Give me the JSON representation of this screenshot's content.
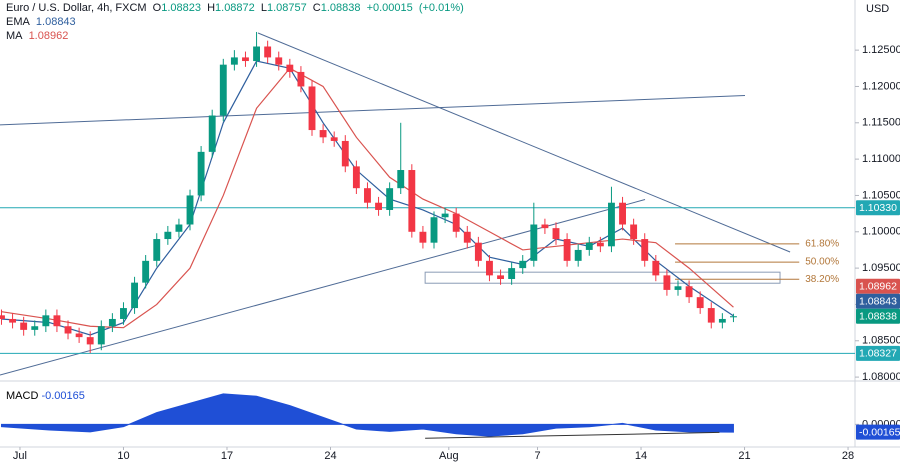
{
  "chart_data": {
    "type": "candlestick",
    "symbol": "Euro / U.S. Dollar, 4h, FXCM",
    "currency": "USD",
    "ohlc_keys": [
      "O",
      "H",
      "L",
      "C"
    ],
    "change": {
      "value": 0.00015,
      "label": "+0.00015"
    },
    "change_pct": {
      "value": 0.01,
      "label": "(+0.01%)"
    },
    "up_color": "#089981",
    "down_color": "#f23645",
    "x": [
      -1.25,
      -0.5,
      0.25,
      1.0,
      1.75,
      2.5,
      3.25,
      4.0,
      4.75,
      5.5,
      6.25,
      7.0,
      7.75,
      8.5,
      9.25,
      10.0,
      10.75,
      11.5,
      12.25,
      13.0,
      13.75,
      14.5,
      15.25,
      16.0,
      16.75,
      17.5,
      18.25,
      19.0,
      19.75,
      20.5,
      21.25,
      22.0,
      22.75,
      23.5,
      24.25,
      25.0,
      25.75,
      26.5,
      27.25,
      28.0,
      28.75,
      29.5,
      30.25,
      31.0,
      31.75,
      32.5,
      33.25,
      34.0,
      34.75,
      35.5,
      36.25,
      37.0,
      37.75,
      38.5,
      39.25,
      40.0,
      40.75,
      41.5,
      42.25,
      43.0,
      43.75,
      44.5,
      45.25,
      46.0,
      46.75,
      47.5,
      48.25
    ],
    "open": [
      1.0885,
      1.088,
      1.0875,
      1.0865,
      1.087,
      1.0885,
      1.087,
      1.086,
      1.0855,
      1.0845,
      1.087,
      1.088,
      1.0895,
      1.093,
      1.096,
      1.099,
      1.1,
      1.101,
      1.105,
      1.111,
      1.116,
      1.123,
      1.124,
      1.1235,
      1.1255,
      1.124,
      1.123,
      1.122,
      1.12,
      1.114,
      1.113,
      1.1125,
      1.109,
      1.106,
      1.104,
      1.103,
      1.106,
      1.1085,
      1.1,
      1.0985,
      1.102,
      1.1025,
      1.1,
      1.0985,
      1.096,
      1.094,
      1.0935,
      1.095,
      1.096,
      1.101,
      1.1005,
      1.099,
      1.096,
      1.0975,
      1.0985,
      1.098,
      1.104,
      1.101,
      1.099,
      1.096,
      1.094,
      1.092,
      1.0925,
      1.091,
      1.0895,
      1.0875,
      1.08823
    ],
    "high": [
      1.0893,
      1.0888,
      1.0883,
      1.0878,
      1.0893,
      1.0893,
      1.0878,
      1.0868,
      1.0863,
      1.0878,
      1.0888,
      1.0903,
      1.0938,
      1.0968,
      1.0998,
      1.1008,
      1.1018,
      1.1058,
      1.1118,
      1.1168,
      1.1238,
      1.125,
      1.1248,
      1.1275,
      1.1263,
      1.1248,
      1.1238,
      1.1228,
      1.1208,
      1.1148,
      1.1138,
      1.1133,
      1.1098,
      1.1068,
      1.1048,
      1.1068,
      1.115,
      1.1093,
      1.1008,
      1.1028,
      1.1033,
      1.1033,
      1.1008,
      1.0993,
      1.0968,
      1.0948,
      1.0958,
      1.0968,
      1.104,
      1.1018,
      1.1013,
      1.0998,
      1.0983,
      1.0993,
      1.0993,
      1.1062,
      1.1048,
      1.1018,
      1.0998,
      1.0968,
      1.0948,
      1.0933,
      1.0933,
      1.0918,
      1.0903,
      1.0888,
      1.08872
    ],
    "low": [
      1.0872,
      1.0867,
      1.0857,
      1.0857,
      1.0862,
      1.0862,
      1.0852,
      1.0847,
      1.0833,
      1.0837,
      1.0862,
      1.0872,
      1.0887,
      1.0922,
      1.0952,
      1.0982,
      1.0992,
      1.1002,
      1.1042,
      1.1102,
      1.1152,
      1.1222,
      1.1227,
      1.1227,
      1.1232,
      1.1222,
      1.1212,
      1.1192,
      1.1132,
      1.1122,
      1.1117,
      1.1082,
      1.1052,
      1.1032,
      1.1022,
      1.1022,
      1.1052,
      1.0992,
      1.0977,
      1.0977,
      1.1012,
      1.0992,
      1.0977,
      1.0952,
      1.0932,
      1.0927,
      1.0927,
      1.0942,
      1.0952,
      1.0997,
      1.0982,
      1.0952,
      1.0952,
      1.0967,
      1.0972,
      1.0972,
      1.1002,
      1.0982,
      1.0952,
      1.0932,
      1.0912,
      1.0912,
      1.0902,
      1.0887,
      1.0867,
      1.0867,
      1.08757
    ],
    "close": [
      1.088,
      1.0875,
      1.0865,
      1.087,
      1.0885,
      1.087,
      1.086,
      1.0855,
      1.0845,
      1.087,
      1.088,
      1.0895,
      1.093,
      1.096,
      1.099,
      1.1,
      1.101,
      1.105,
      1.111,
      1.116,
      1.123,
      1.124,
      1.1235,
      1.1255,
      1.124,
      1.123,
      1.122,
      1.12,
      1.114,
      1.113,
      1.1125,
      1.109,
      1.106,
      1.104,
      1.103,
      1.106,
      1.1085,
      1.1,
      1.0985,
      1.102,
      1.1025,
      1.1,
      1.0985,
      1.096,
      1.094,
      1.0935,
      1.095,
      1.096,
      1.101,
      1.1005,
      1.099,
      1.096,
      1.0975,
      1.0985,
      1.098,
      1.104,
      1.101,
      1.099,
      1.096,
      1.094,
      1.092,
      1.0925,
      1.091,
      1.0895,
      1.0875,
      1.088,
      1.08838
    ],
    "series": [
      {
        "name": "EMA",
        "color": "#2f5f9e",
        "x": [
          -1.25,
          2,
          4.75,
          7,
          9.25,
          11.5,
          13.75,
          16,
          18.25,
          20.5,
          22.75,
          25,
          27.25,
          29.5,
          31.75,
          34,
          36.25,
          38.5,
          40.75,
          43,
          45.25,
          48.25
        ],
        "values": [
          1.088,
          1.0875,
          1.0858,
          1.0875,
          1.095,
          1.101,
          1.115,
          1.1235,
          1.1225,
          1.115,
          1.1085,
          1.1045,
          1.103,
          1.101,
          1.0965,
          1.0955,
          1.099,
          1.098,
          1.1005,
          1.096,
          1.0925,
          1.08843
        ]
      },
      {
        "name": "MA",
        "color": "#d9534f",
        "x": [
          -1.25,
          2,
          4.75,
          7,
          9.25,
          11.5,
          13.75,
          16,
          18.25,
          20.5,
          22.75,
          25,
          27.25,
          29.5,
          31.75,
          34,
          36.25,
          38.5,
          40.75,
          43,
          45.25,
          48.25
        ],
        "values": [
          1.089,
          1.088,
          1.087,
          1.0868,
          1.09,
          1.095,
          1.105,
          1.117,
          1.1225,
          1.12,
          1.113,
          1.1075,
          1.1045,
          1.1025,
          1.1,
          1.0975,
          1.098,
          1.0985,
          1.099,
          1.0985,
          1.095,
          1.08962
        ]
      }
    ],
    "hlines": [
      {
        "value": 1.1033,
        "label": "1.10330"
      },
      {
        "value": 1.08327,
        "label": "1.08327"
      }
    ],
    "hline_color": "#22a8b4",
    "trendlines": [
      {
        "x": [
          -1.35,
          49.03
        ],
        "y": [
          1.11472,
          1.11875
        ]
      },
      {
        "x": [
          16.1,
          52.08
        ],
        "y": [
          1.12736,
          1.09722
        ]
      },
      {
        "x": [
          -1.35,
          42.27
        ],
        "y": [
          1.08028,
          1.10444
        ]
      }
    ],
    "trendline_color": "#4f6b96",
    "fib": {
      "x": [
        44.3,
        52.7
      ],
      "color": "#b2773a",
      "levels": [
        {
          "value": 1.09833,
          "label": "61.80%"
        },
        {
          "value": 1.09583,
          "label": "50.00%"
        },
        {
          "value": 1.09347,
          "label": "38.20%"
        }
      ]
    },
    "box": {
      "x": [
        27.4,
        51.4
      ],
      "y": [
        1.09292,
        1.09444
      ],
      "color": "#8a9bb5"
    },
    "xlim": [
      -1.35,
      56.47
    ],
    "xticks": [
      {
        "value": 0,
        "label": "Jul"
      },
      {
        "value": 7,
        "label": "10"
      },
      {
        "value": 14,
        "label": "17"
      },
      {
        "value": 21,
        "label": "24"
      },
      {
        "value": 29,
        "label": "Aug"
      },
      {
        "value": 35,
        "label": "7"
      },
      {
        "value": 42,
        "label": "14"
      },
      {
        "value": 49,
        "label": "21"
      },
      {
        "value": 56,
        "label": "28"
      }
    ],
    "ylim": [
      1.0796,
      1.1319
    ],
    "yticks": [
      {
        "value": 1.08,
        "label": "1.08000"
      },
      {
        "value": 1.085,
        "label": "1.08500"
      },
      {
        "value": 1.09,
        "label": "1.09000"
      },
      {
        "value": 1.095,
        "label": "1.09500"
      },
      {
        "value": 1.1,
        "label": "1.10000"
      },
      {
        "value": 1.105,
        "label": "1.10500"
      },
      {
        "value": 1.11,
        "label": "1.11000"
      },
      {
        "value": 1.115,
        "label": "1.11500"
      },
      {
        "value": 1.12,
        "label": "1.12000"
      },
      {
        "value": 1.125,
        "label": "1.12500"
      }
    ],
    "grid": false,
    "macd": {
      "name": "MACD",
      "color": "#1f4fd6",
      "x": [
        -1.25,
        2,
        4.75,
        7,
        9.25,
        11.5,
        13.75,
        16,
        18.25,
        20.5,
        22.75,
        25,
        27.25,
        29.5,
        31.75,
        34,
        36.25,
        38.5,
        40.75,
        43,
        45.25,
        48.25
      ],
      "values": [
        -0.0005,
        -0.0012,
        -0.0016,
        -0.0005,
        0.0025,
        0.0045,
        0.0065,
        0.006,
        0.004,
        0.0015,
        -0.001,
        -0.0015,
        -0.001,
        -0.002,
        -0.0025,
        -0.002,
        -0.0008,
        -0.0005,
        0.0002,
        -0.0012,
        -0.0016,
        -0.00165
      ],
      "ylim": [
        -0.0044,
        0.0086
      ],
      "yticks": [
        {
          "value": 0,
          "label": "0.00000"
        }
      ],
      "trendline": {
        "x": [
          27.4,
          47.3
        ],
        "y": [
          -0.00296,
          -0.00172
        ]
      }
    }
  }
}
